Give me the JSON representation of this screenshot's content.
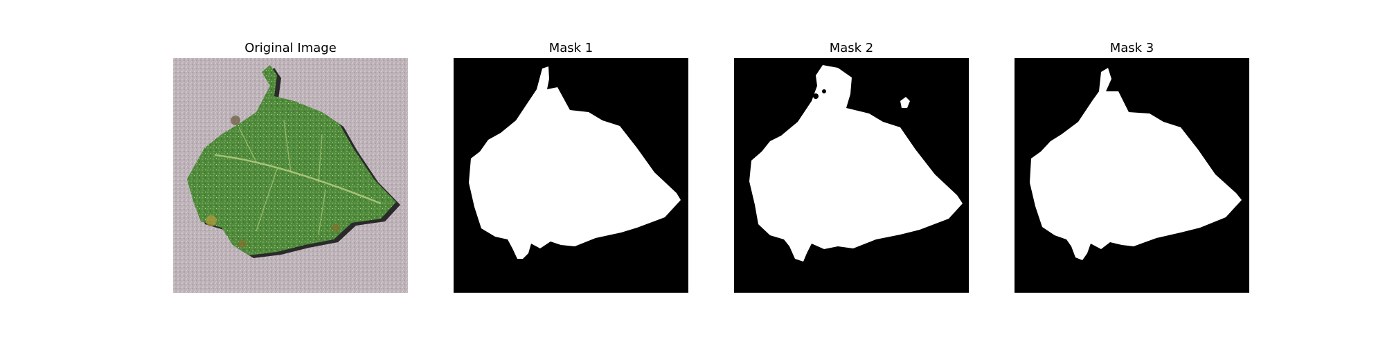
{
  "figure": {
    "panels": [
      {
        "title": "Original Image"
      },
      {
        "title": "Mask 1"
      },
      {
        "title": "Mask 2"
      },
      {
        "title": "Mask 3"
      }
    ]
  },
  "colors": {
    "mask_background": "#000000",
    "mask_foreground": "#ffffff",
    "leaf_dark": "#2f5a2a",
    "leaf_mid": "#4f8a3c",
    "leaf_light": "#9cc26a",
    "ground": "#bdb3b8",
    "shadow": "#2b2a2a"
  }
}
